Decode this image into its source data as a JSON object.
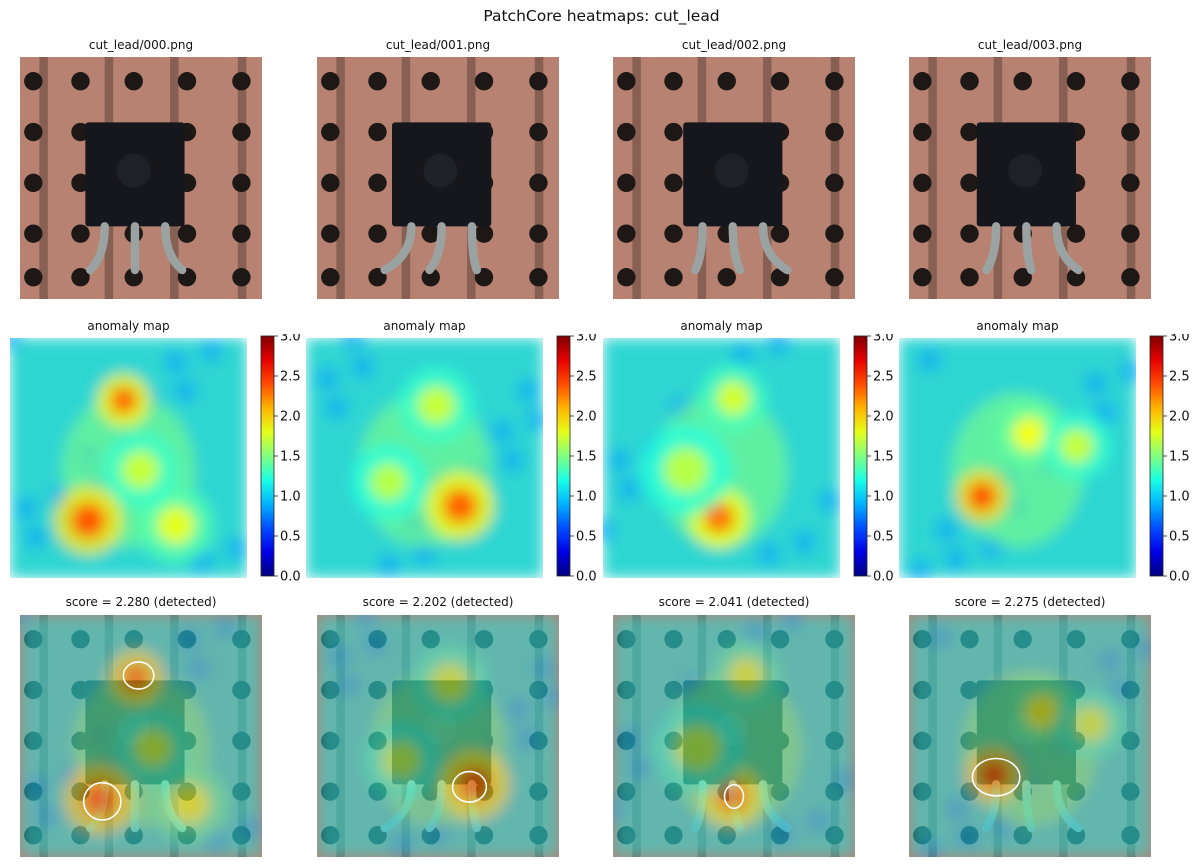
{
  "title": "PatchCore heatmaps: cut_lead",
  "colors": {
    "board": "#b88272",
    "board_dark": "#7e5a4e",
    "hole": "#1d1715",
    "chip": "#15171c",
    "lead": "#9aa3a2",
    "heat_base": "#2fd6d2",
    "contour": "#ffffff"
  },
  "colorbar": {
    "min": 0.0,
    "max": 3.0,
    "ticks": [
      "0.0",
      "0.5",
      "1.0",
      "1.5",
      "2.0",
      "2.5",
      "3.0"
    ],
    "colormap": "jet"
  },
  "chart_data": [
    {
      "type": "heatmap",
      "image_title": "cut_lead/000.png",
      "map_title": "anomaly map",
      "score_label": "score = 2.280 (detected)",
      "score": 2.28,
      "status": "detected"
    },
    {
      "type": "heatmap",
      "image_title": "cut_lead/001.png",
      "map_title": "anomaly map",
      "score_label": "score = 2.202 (detected)",
      "score": 2.202,
      "status": "detected"
    },
    {
      "type": "heatmap",
      "image_title": "cut_lead/002.png",
      "map_title": "anomaly map",
      "score_label": "score = 2.041 (detected)",
      "score": 2.041,
      "status": "detected"
    },
    {
      "type": "heatmap",
      "image_title": "cut_lead/003.png",
      "map_title": "anomaly map",
      "score_label": "score = 2.275 (detected)",
      "score": 2.275,
      "status": "detected"
    }
  ]
}
